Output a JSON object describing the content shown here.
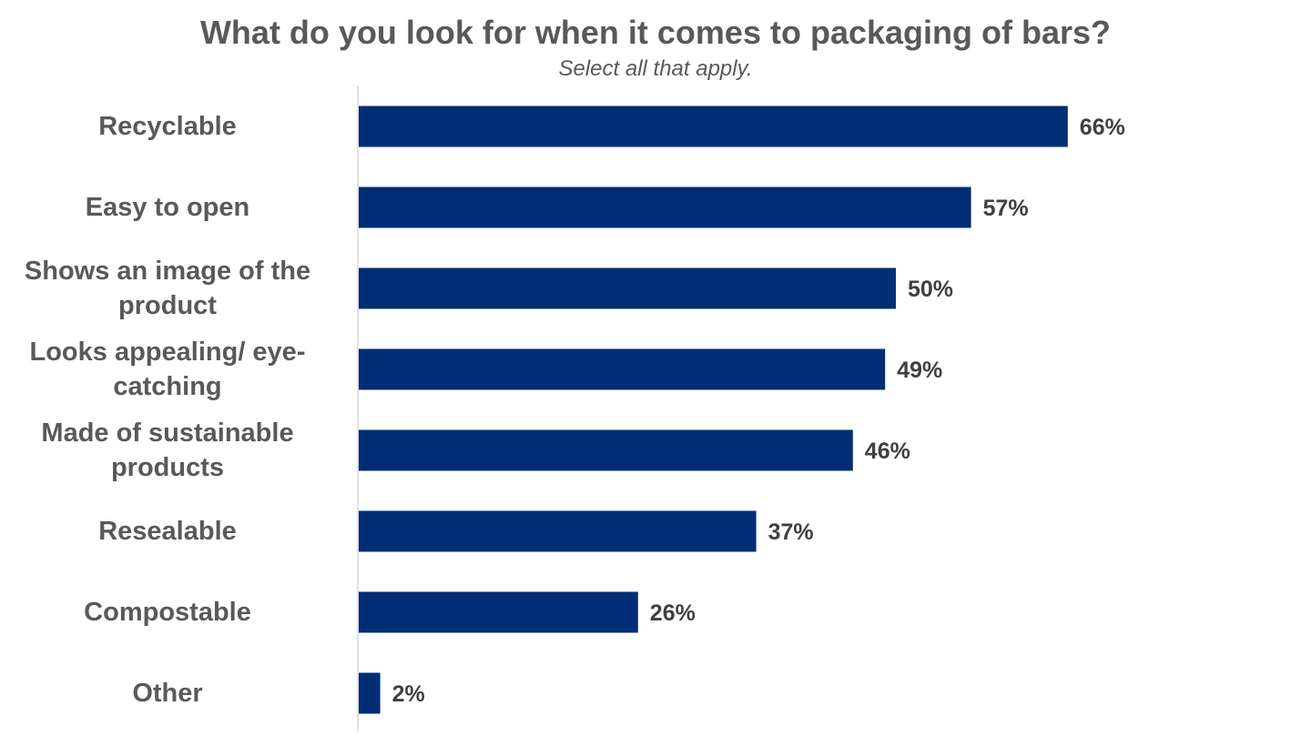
{
  "chart_data": {
    "type": "bar",
    "orientation": "horizontal",
    "title": "What do you look for when it comes to packaging of bars?",
    "subtitle": "Select all that apply.",
    "categories": [
      "Recyclable",
      "Easy to open",
      "Shows an image of the product",
      "Looks appealing/ eye-catching",
      "Made of sustainable products",
      "Resealable",
      "Compostable",
      "Other"
    ],
    "values": [
      66,
      57,
      50,
      49,
      46,
      37,
      26,
      2
    ],
    "value_labels": [
      "66%",
      "57%",
      "50%",
      "49%",
      "46%",
      "37%",
      "26%",
      "2%"
    ],
    "unit": "%",
    "xlim": [
      0,
      100
    ],
    "grid": false,
    "legend": "none",
    "bar_color": "#002D74",
    "axis_color": "#D9D9D9"
  }
}
